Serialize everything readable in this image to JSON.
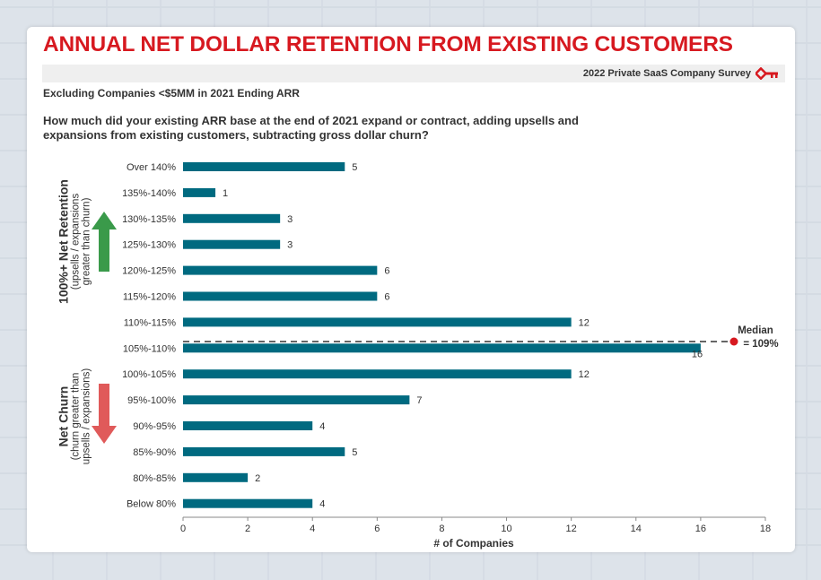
{
  "title": "ANNUAL NET DOLLAR RETENTION FROM EXISTING CUSTOMERS",
  "survey_label": "2022 Private SaaS Company Survey",
  "subtitle": "Excluding Companies <$5MM in 2021 Ending ARR",
  "question": "How much did your existing ARR base at the end of 2021 expand or contract, adding upsells and expansions from existing customers, subtracting gross dollar churn?",
  "side_labels": {
    "top": {
      "heading": "100%+ Net Retention",
      "line1": "(upsells / expansions",
      "line2": "greater than churn)",
      "arrow_color": "#3a9a4a"
    },
    "bottom": {
      "heading": "Net Churn",
      "line1": "(churn greater than",
      "line2": "upsells / expansions)",
      "arrow_color": "#e05a5a"
    }
  },
  "colors": {
    "bar": "#006a80",
    "title": "#d71920",
    "median": "#d71920"
  },
  "chart_data": {
    "type": "bar",
    "orientation": "horizontal",
    "categories": [
      "Over 140%",
      "135%-140%",
      "130%-135%",
      "125%-130%",
      "120%-125%",
      "115%-120%",
      "110%-115%",
      "105%-110%",
      "100%-105%",
      "95%-100%",
      "90%-95%",
      "85%-90%",
      "80%-85%",
      "Below 80%"
    ],
    "values": [
      5,
      1,
      3,
      3,
      6,
      6,
      12,
      16,
      12,
      7,
      4,
      5,
      2,
      4
    ],
    "xlabel": "# of Companies",
    "xlim": [
      0,
      18
    ],
    "xticks": [
      0,
      2,
      4,
      6,
      8,
      10,
      12,
      14,
      16,
      18
    ],
    "grid": false,
    "annotation": {
      "line1": "Median",
      "line2": "= 109%"
    }
  }
}
